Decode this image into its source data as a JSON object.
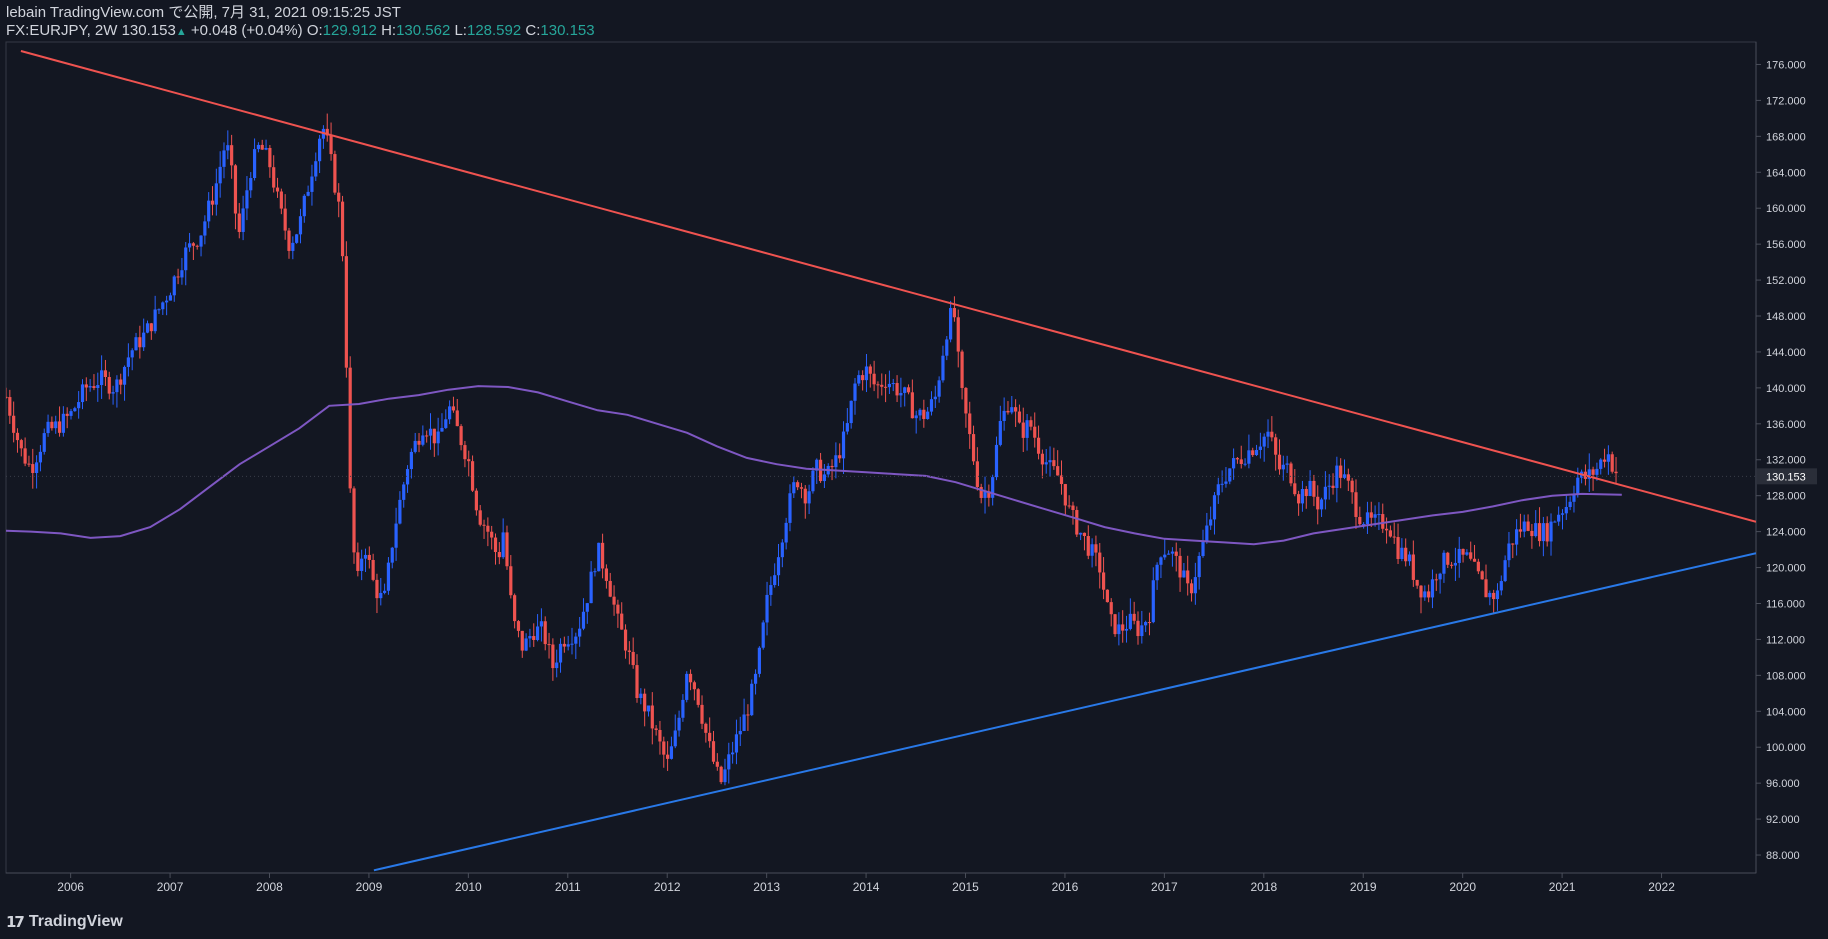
{
  "header": {
    "published_line": "lebain TradingView.com で公開, 7月 31, 2021 09:15:25 JST",
    "symbol_interval": "FX:EURJPY, 2W",
    "last": "130.153",
    "up_arrow": "▲",
    "change": "+0.048 (+0.04%)",
    "o_label": "O:",
    "o_value": "129.912",
    "h_label": "H:",
    "h_value": "130.562",
    "l_label": "L:",
    "l_value": "128.592",
    "c_label": "C:",
    "c_value": "130.153"
  },
  "footer": {
    "brand": "TradingView",
    "logo_icon": "tradingview-logo-icon"
  },
  "colors": {
    "background": "#131722",
    "up": "#2962ff",
    "down": "#ef5350",
    "resistance_line": "#ef5350",
    "support_line": "#2979e8",
    "ma_line": "#7e57c2",
    "axis_text": "#d1d4dc",
    "grid_border": "#363a45"
  },
  "chart_data": {
    "type": "candlestick",
    "symbol": "FX:EURJPY",
    "interval": "2W",
    "x_tick_labels": [
      "2006",
      "2007",
      "2008",
      "2009",
      "2010",
      "2011",
      "2012",
      "2013",
      "2014",
      "2015",
      "2016",
      "2017",
      "2018",
      "2019",
      "2020",
      "2021",
      "2022"
    ],
    "y_tick_labels": [
      "176.000",
      "172.000",
      "168.000",
      "164.000",
      "160.000",
      "156.000",
      "152.000",
      "148.000",
      "144.000",
      "140.000",
      "136.000",
      "132.000",
      "128.000",
      "124.000",
      "120.000",
      "116.000",
      "112.000",
      "108.000",
      "104.000",
      "100.000",
      "96.000",
      "92.000",
      "88.000"
    ],
    "ylim": [
      86.0,
      178.5
    ],
    "xlim": [
      2005.35,
      2022.95
    ],
    "last_price_label": "130.153",
    "price_path": [
      [
        2005.35,
        139
      ],
      [
        2005.5,
        133
      ],
      [
        2005.6,
        131
      ],
      [
        2005.75,
        135
      ],
      [
        2005.9,
        136
      ],
      [
        2006.0,
        137
      ],
      [
        2006.15,
        140
      ],
      [
        2006.3,
        141
      ],
      [
        2006.45,
        140
      ],
      [
        2006.6,
        144
      ],
      [
        2006.75,
        146
      ],
      [
        2006.9,
        149
      ],
      [
        2007.0,
        151
      ],
      [
        2007.15,
        155
      ],
      [
        2007.3,
        157
      ],
      [
        2007.45,
        162
      ],
      [
        2007.55,
        167
      ],
      [
        2007.6,
        166
      ],
      [
        2007.65,
        160
      ],
      [
        2007.7,
        157
      ],
      [
        2007.8,
        164
      ],
      [
        2007.9,
        167
      ],
      [
        2008.0,
        165
      ],
      [
        2008.1,
        160
      ],
      [
        2008.2,
        156
      ],
      [
        2008.3,
        158
      ],
      [
        2008.4,
        163
      ],
      [
        2008.5,
        168
      ],
      [
        2008.55,
        169
      ],
      [
        2008.62,
        165
      ],
      [
        2008.7,
        160
      ],
      [
        2008.75,
        153
      ],
      [
        2008.78,
        140
      ],
      [
        2008.82,
        125
      ],
      [
        2008.88,
        118
      ],
      [
        2008.95,
        123
      ],
      [
        2009.05,
        118
      ],
      [
        2009.15,
        116
      ],
      [
        2009.25,
        124
      ],
      [
        2009.4,
        132
      ],
      [
        2009.55,
        136
      ],
      [
        2009.7,
        134
      ],
      [
        2009.8,
        138
      ],
      [
        2009.9,
        135
      ],
      [
        2010.0,
        132
      ],
      [
        2010.1,
        126
      ],
      [
        2010.2,
        124
      ],
      [
        2010.3,
        121
      ],
      [
        2010.35,
        124
      ],
      [
        2010.45,
        114
      ],
      [
        2010.55,
        111
      ],
      [
        2010.65,
        113
      ],
      [
        2010.75,
        113
      ],
      [
        2010.85,
        109
      ],
      [
        2010.95,
        112
      ],
      [
        2011.1,
        113
      ],
      [
        2011.2,
        117
      ],
      [
        2011.3,
        122
      ],
      [
        2011.4,
        119
      ],
      [
        2011.5,
        114
      ],
      [
        2011.6,
        111
      ],
      [
        2011.7,
        106
      ],
      [
        2011.8,
        104
      ],
      [
        2011.9,
        101
      ],
      [
        2012.0,
        98
      ],
      [
        2012.1,
        102
      ],
      [
        2012.2,
        109
      ],
      [
        2012.3,
        106
      ],
      [
        2012.4,
        101
      ],
      [
        2012.5,
        97
      ],
      [
        2012.55,
        96
      ],
      [
        2012.6,
        98
      ],
      [
        2012.7,
        101
      ],
      [
        2012.8,
        104
      ],
      [
        2012.9,
        108
      ],
      [
        2013.0,
        116
      ],
      [
        2013.1,
        121
      ],
      [
        2013.2,
        126
      ],
      [
        2013.3,
        130
      ],
      [
        2013.4,
        128
      ],
      [
        2013.5,
        131
      ],
      [
        2013.6,
        130
      ],
      [
        2013.7,
        132
      ],
      [
        2013.8,
        135
      ],
      [
        2013.9,
        141
      ],
      [
        2014.0,
        142
      ],
      [
        2014.1,
        140
      ],
      [
        2014.2,
        141
      ],
      [
        2014.3,
        140
      ],
      [
        2014.4,
        139
      ],
      [
        2014.5,
        137
      ],
      [
        2014.6,
        137
      ],
      [
        2014.7,
        139
      ],
      [
        2014.8,
        146
      ],
      [
        2014.88,
        149
      ],
      [
        2014.95,
        140
      ],
      [
        2015.05,
        134
      ],
      [
        2015.15,
        128
      ],
      [
        2015.25,
        129
      ],
      [
        2015.35,
        136
      ],
      [
        2015.45,
        139
      ],
      [
        2015.55,
        135
      ],
      [
        2015.65,
        136
      ],
      [
        2015.75,
        133
      ],
      [
        2015.85,
        131
      ],
      [
        2015.95,
        130
      ],
      [
        2016.05,
        126
      ],
      [
        2016.15,
        124
      ],
      [
        2016.25,
        122
      ],
      [
        2016.35,
        120
      ],
      [
        2016.45,
        114
      ],
      [
        2016.55,
        113
      ],
      [
        2016.65,
        114
      ],
      [
        2016.75,
        113
      ],
      [
        2016.85,
        115
      ],
      [
        2016.95,
        122
      ],
      [
        2017.05,
        122
      ],
      [
        2017.15,
        120
      ],
      [
        2017.25,
        117
      ],
      [
        2017.35,
        121
      ],
      [
        2017.45,
        125
      ],
      [
        2017.55,
        129
      ],
      [
        2017.65,
        131
      ],
      [
        2017.75,
        132
      ],
      [
        2017.85,
        133
      ],
      [
        2017.95,
        134
      ],
      [
        2018.05,
        135
      ],
      [
        2018.15,
        131
      ],
      [
        2018.25,
        131
      ],
      [
        2018.35,
        128
      ],
      [
        2018.45,
        129
      ],
      [
        2018.55,
        127
      ],
      [
        2018.65,
        129
      ],
      [
        2018.75,
        131
      ],
      [
        2018.85,
        129
      ],
      [
        2018.95,
        126
      ],
      [
        2019.05,
        125
      ],
      [
        2019.15,
        125
      ],
      [
        2019.25,
        125
      ],
      [
        2019.35,
        122
      ],
      [
        2019.45,
        121
      ],
      [
        2019.55,
        118
      ],
      [
        2019.65,
        117
      ],
      [
        2019.75,
        120
      ],
      [
        2019.85,
        121
      ],
      [
        2019.95,
        121
      ],
      [
        2020.05,
        121
      ],
      [
        2020.15,
        119
      ],
      [
        2020.25,
        117
      ],
      [
        2020.35,
        117
      ],
      [
        2020.45,
        122
      ],
      [
        2020.55,
        124
      ],
      [
        2020.65,
        125
      ],
      [
        2020.75,
        124
      ],
      [
        2020.85,
        124
      ],
      [
        2020.95,
        126
      ],
      [
        2021.05,
        127
      ],
      [
        2021.15,
        130
      ],
      [
        2021.25,
        130
      ],
      [
        2021.35,
        131
      ],
      [
        2021.45,
        133
      ],
      [
        2021.52,
        131
      ],
      [
        2021.58,
        130.15
      ]
    ],
    "moving_average_path": [
      [
        2005.35,
        124.1
      ],
      [
        2005.6,
        124.0
      ],
      [
        2005.9,
        123.8
      ],
      [
        2006.2,
        123.3
      ],
      [
        2006.5,
        123.5
      ],
      [
        2006.8,
        124.5
      ],
      [
        2007.1,
        126.5
      ],
      [
        2007.4,
        129
      ],
      [
        2007.7,
        131.5
      ],
      [
        2008.0,
        133.5
      ],
      [
        2008.3,
        135.5
      ],
      [
        2008.6,
        138
      ],
      [
        2008.9,
        138.2
      ],
      [
        2009.2,
        138.8
      ],
      [
        2009.5,
        139.2
      ],
      [
        2009.8,
        139.8
      ],
      [
        2010.1,
        140.2
      ],
      [
        2010.4,
        140.1
      ],
      [
        2010.7,
        139.5
      ],
      [
        2011.0,
        138.5
      ],
      [
        2011.3,
        137.5
      ],
      [
        2011.6,
        137
      ],
      [
        2011.9,
        136
      ],
      [
        2012.2,
        135
      ],
      [
        2012.5,
        133.5
      ],
      [
        2012.8,
        132.2
      ],
      [
        2013.1,
        131.5
      ],
      [
        2013.4,
        131
      ],
      [
        2013.7,
        130.8
      ],
      [
        2014.0,
        130.6
      ],
      [
        2014.3,
        130.4
      ],
      [
        2014.6,
        130.2
      ],
      [
        2014.9,
        129.5
      ],
      [
        2015.2,
        128.5
      ],
      [
        2015.5,
        127.5
      ],
      [
        2015.8,
        126.5
      ],
      [
        2016.1,
        125.5
      ],
      [
        2016.4,
        124.5
      ],
      [
        2016.7,
        123.8
      ],
      [
        2017.0,
        123.2
      ],
      [
        2017.3,
        123
      ],
      [
        2017.6,
        122.8
      ],
      [
        2017.9,
        122.6
      ],
      [
        2018.2,
        123
      ],
      [
        2018.5,
        123.8
      ],
      [
        2018.8,
        124.3
      ],
      [
        2019.1,
        124.8
      ],
      [
        2019.4,
        125.3
      ],
      [
        2019.7,
        125.8
      ],
      [
        2020.0,
        126.2
      ],
      [
        2020.3,
        126.8
      ],
      [
        2020.6,
        127.5
      ],
      [
        2020.9,
        128
      ],
      [
        2021.2,
        128.2
      ],
      [
        2021.6,
        128.1
      ]
    ],
    "trendlines": [
      {
        "name": "resistance",
        "points": [
          [
            2005.5,
            177.5
          ],
          [
            2022.95,
            125.1
          ]
        ]
      },
      {
        "name": "support",
        "points": [
          [
            2009.05,
            86.3
          ],
          [
            2022.95,
            121.6
          ]
        ]
      }
    ]
  }
}
